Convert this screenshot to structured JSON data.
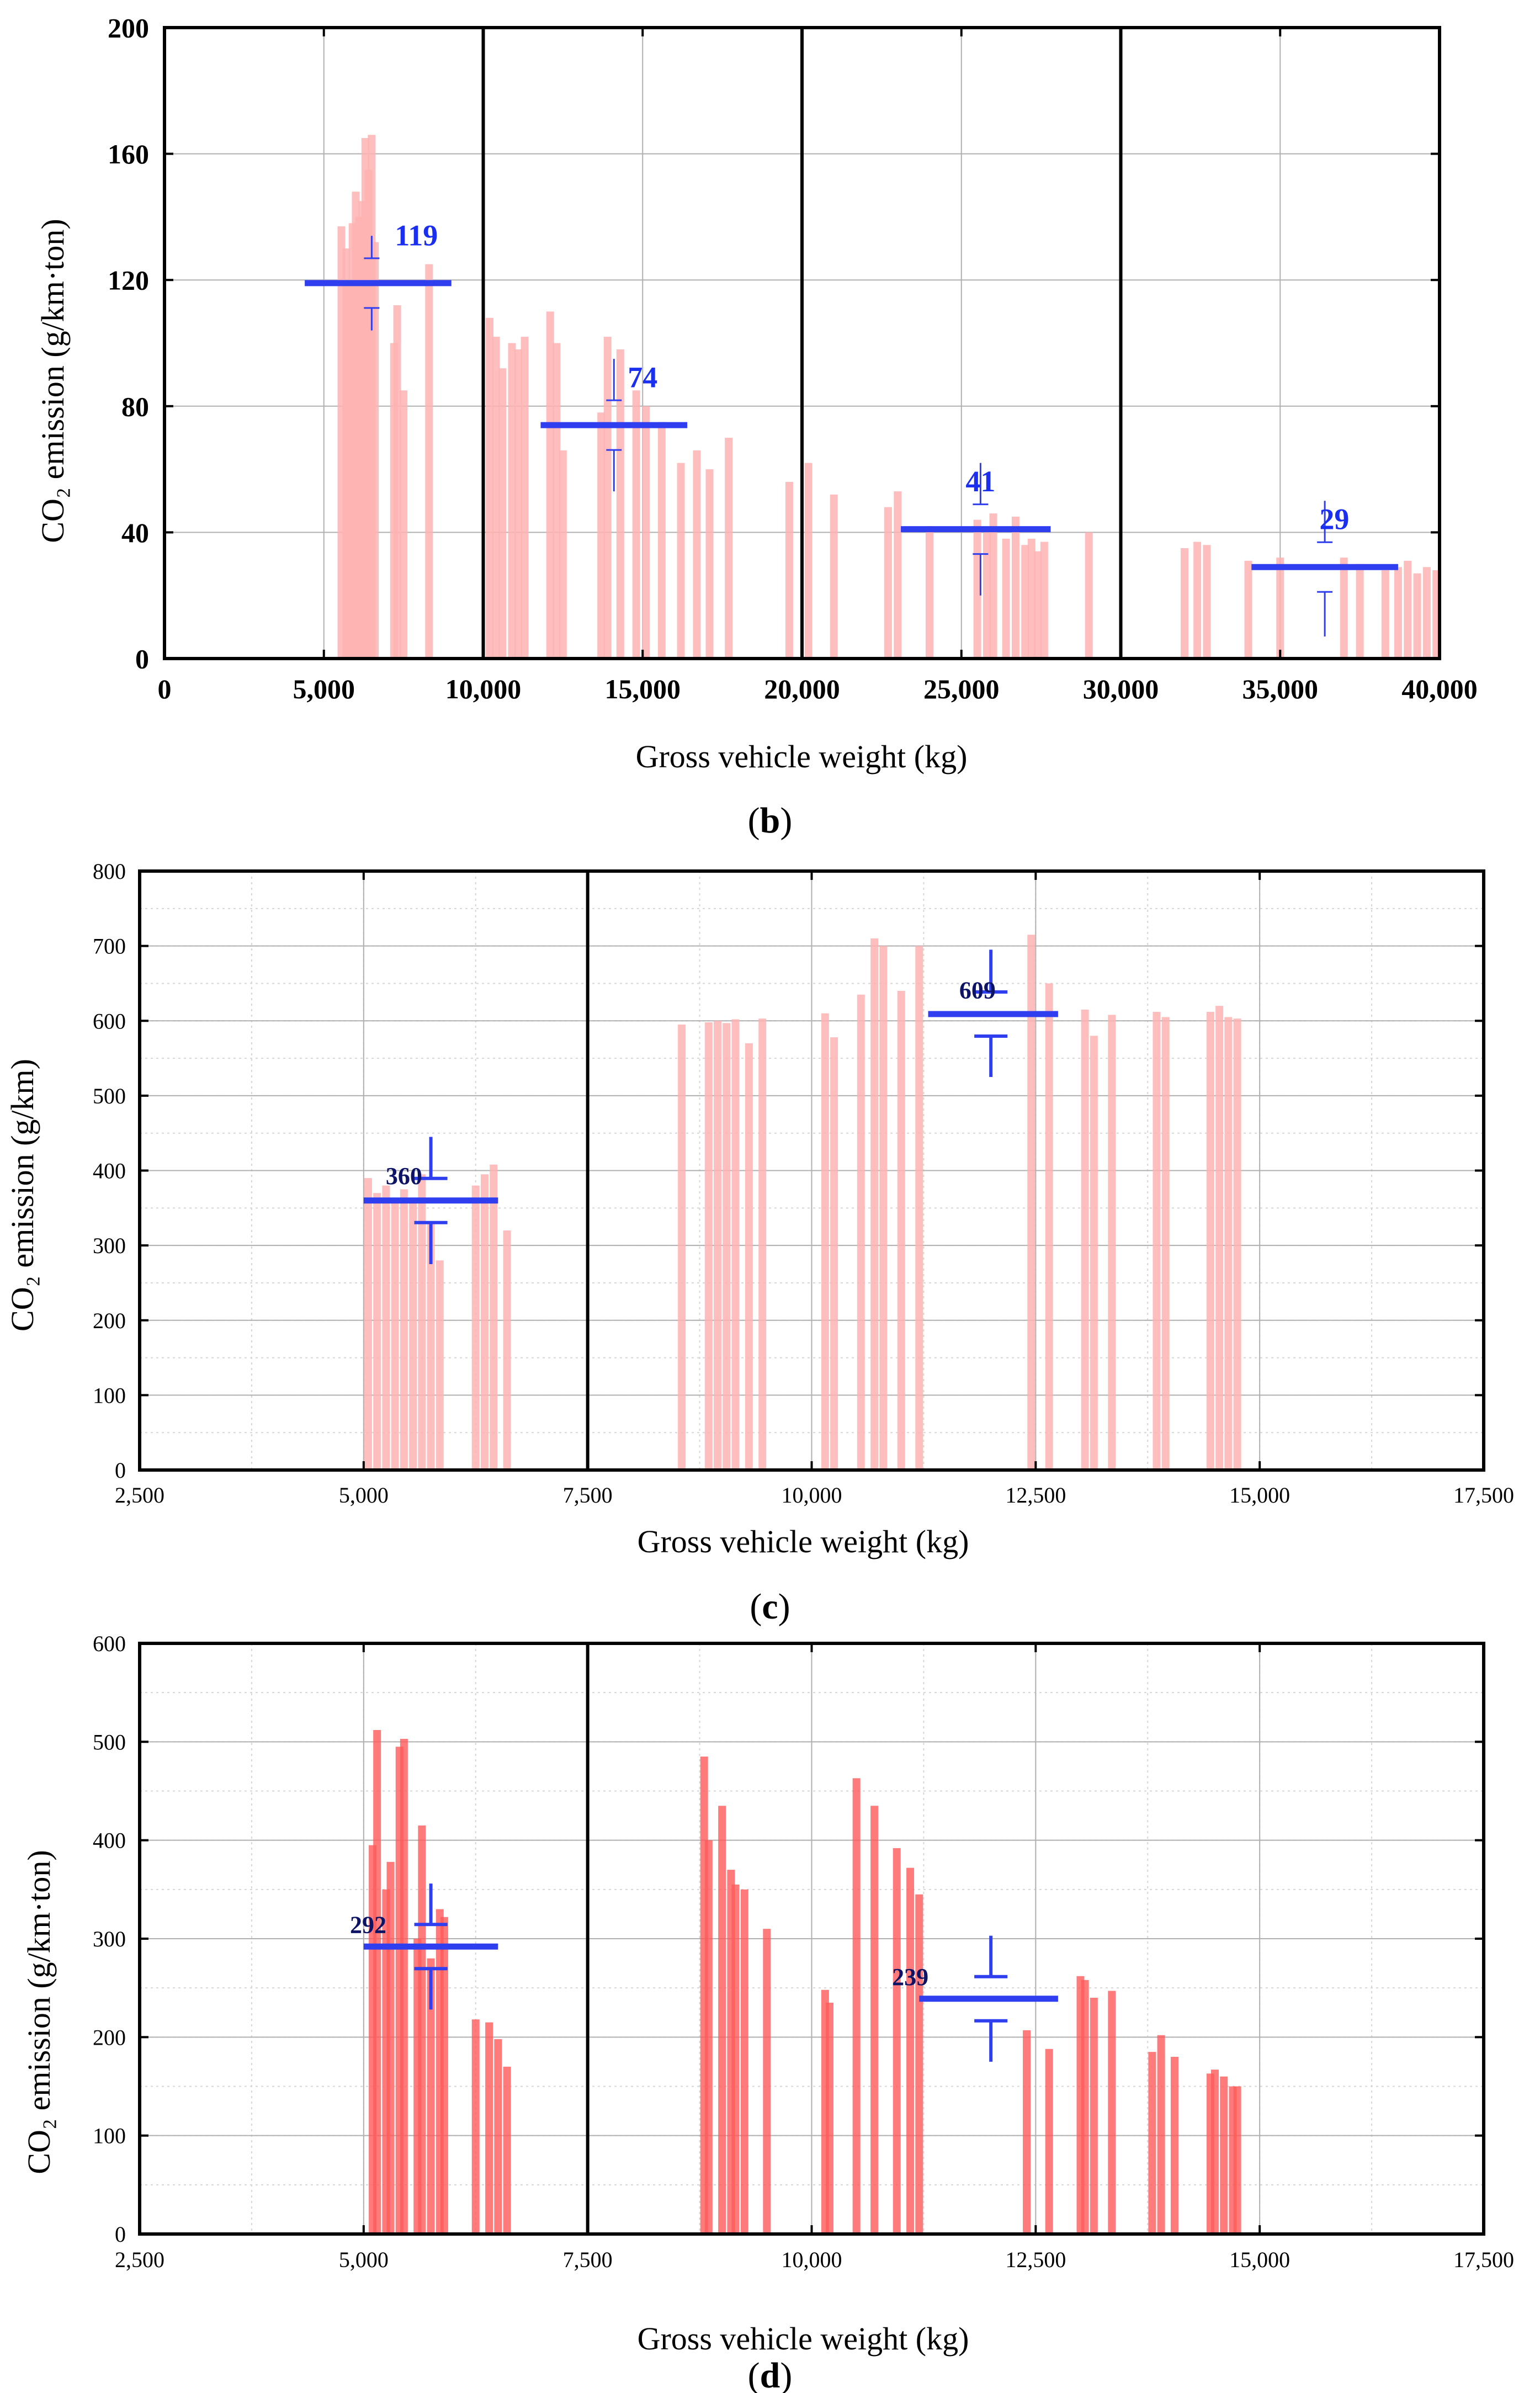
{
  "colors": {
    "bar": "#ff5a5a",
    "bar_light": "#ffb3b3",
    "mean": "#2f3ff0",
    "label_b": "#1a2ff0",
    "label_cd": "#0d1466",
    "grid": "#b0b0b0",
    "grid_dotted": "#d6d6d6",
    "axis": "#000000"
  },
  "chart_data": [
    {
      "id": "b",
      "type": "bar",
      "caption": "b",
      "xlabel": "Gross vehicle weight (kg)",
      "ylabel": "CO₂ emission (g/km·ton)",
      "xlim": [
        0,
        40000
      ],
      "ylim": [
        0,
        200
      ],
      "xticks": [
        0,
        5000,
        10000,
        15000,
        20000,
        25000,
        30000,
        35000,
        40000
      ],
      "xtick_labels": [
        "0",
        "5,000",
        "10,000",
        "15,000",
        "20,000",
        "25,000",
        "30,000",
        "35,000",
        "40,000"
      ],
      "yticks": [
        0,
        40,
        80,
        120,
        160,
        200
      ],
      "ytick_labels": [
        "0",
        "40",
        "80",
        "120",
        "160",
        "200"
      ],
      "dividers": [
        10000,
        20000,
        30000
      ],
      "bar_style": "light",
      "bars": [
        {
          "x": 5550,
          "y": 137
        },
        {
          "x": 5700,
          "y": 130
        },
        {
          "x": 5800,
          "y": 120
        },
        {
          "x": 5900,
          "y": 138
        },
        {
          "x": 6000,
          "y": 148
        },
        {
          "x": 6100,
          "y": 140
        },
        {
          "x": 6200,
          "y": 145
        },
        {
          "x": 6300,
          "y": 165
        },
        {
          "x": 6400,
          "y": 155
        },
        {
          "x": 6500,
          "y": 166
        },
        {
          "x": 6600,
          "y": 132
        },
        {
          "x": 7200,
          "y": 100
        },
        {
          "x": 7300,
          "y": 112
        },
        {
          "x": 7500,
          "y": 85
        },
        {
          "x": 8300,
          "y": 125
        },
        {
          "x": 10200,
          "y": 108
        },
        {
          "x": 10400,
          "y": 102
        },
        {
          "x": 10600,
          "y": 92
        },
        {
          "x": 10900,
          "y": 100
        },
        {
          "x": 11100,
          "y": 98
        },
        {
          "x": 11300,
          "y": 102
        },
        {
          "x": 12100,
          "y": 110
        },
        {
          "x": 12300,
          "y": 100
        },
        {
          "x": 12500,
          "y": 66
        },
        {
          "x": 13700,
          "y": 78
        },
        {
          "x": 13900,
          "y": 102
        },
        {
          "x": 14300,
          "y": 98
        },
        {
          "x": 14800,
          "y": 85
        },
        {
          "x": 15100,
          "y": 80
        },
        {
          "x": 15600,
          "y": 75
        },
        {
          "x": 16200,
          "y": 62
        },
        {
          "x": 16700,
          "y": 66
        },
        {
          "x": 17100,
          "y": 60
        },
        {
          "x": 17700,
          "y": 70
        },
        {
          "x": 19600,
          "y": 56
        },
        {
          "x": 20200,
          "y": 62
        },
        {
          "x": 21000,
          "y": 52
        },
        {
          "x": 22700,
          "y": 48
        },
        {
          "x": 23000,
          "y": 53
        },
        {
          "x": 24000,
          "y": 42
        },
        {
          "x": 25500,
          "y": 44
        },
        {
          "x": 25800,
          "y": 40
        },
        {
          "x": 26000,
          "y": 46
        },
        {
          "x": 26400,
          "y": 38
        },
        {
          "x": 26700,
          "y": 45
        },
        {
          "x": 27000,
          "y": 36
        },
        {
          "x": 27200,
          "y": 38
        },
        {
          "x": 27400,
          "y": 34
        },
        {
          "x": 27600,
          "y": 37
        },
        {
          "x": 29000,
          "y": 40
        },
        {
          "x": 32000,
          "y": 35
        },
        {
          "x": 32400,
          "y": 37
        },
        {
          "x": 32700,
          "y": 36
        },
        {
          "x": 34000,
          "y": 31
        },
        {
          "x": 35000,
          "y": 32
        },
        {
          "x": 37000,
          "y": 32
        },
        {
          "x": 37500,
          "y": 30
        },
        {
          "x": 38300,
          "y": 28
        },
        {
          "x": 38700,
          "y": 29
        },
        {
          "x": 39000,
          "y": 31
        },
        {
          "x": 39300,
          "y": 27
        },
        {
          "x": 39600,
          "y": 29
        },
        {
          "x": 39900,
          "y": 28
        }
      ],
      "means": [
        {
          "label": "119",
          "value": 119,
          "x0": 4400,
          "x1": 9000,
          "xc": 6500,
          "err_low": 104,
          "err_high": 134,
          "lx": 7900,
          "ly": 131
        },
        {
          "label": "74",
          "value": 74,
          "x0": 11800,
          "x1": 16400,
          "xc": 14100,
          "err_low": 53,
          "err_high": 95,
          "lx": 15000,
          "ly": 86
        },
        {
          "label": "41",
          "value": 41,
          "x0": 23100,
          "x1": 27800,
          "xc": 25600,
          "err_low": 20,
          "err_high": 62,
          "lx": 25600,
          "ly": 53
        },
        {
          "label": "29",
          "value": 29,
          "x0": 34100,
          "x1": 38700,
          "xc": 36400,
          "err_low": 7,
          "err_high": 50,
          "lx": 36700,
          "ly": 41
        }
      ],
      "mean_tick_style": "thin"
    },
    {
      "id": "c",
      "type": "bar",
      "caption": "c",
      "xlabel": "Gross vehicle weight (kg)",
      "ylabel": "CO₂ emission (g/km)",
      "xlim": [
        2500,
        17500
      ],
      "ylim": [
        0,
        800
      ],
      "xticks": [
        2500,
        5000,
        7500,
        10000,
        12500,
        15000,
        17500
      ],
      "xtick_labels": [
        "2,500",
        "5,000",
        "7,500",
        "10,000",
        "12,500",
        "15,000",
        "17,500"
      ],
      "yticks": [
        0,
        100,
        200,
        300,
        400,
        500,
        600,
        700,
        800
      ],
      "ytick_labels": [
        "0",
        "100",
        "200",
        "300",
        "400",
        "500",
        "600",
        "700",
        "800"
      ],
      "dividers": [
        7500
      ],
      "bar_style": "light",
      "bars": [
        {
          "x": 5050,
          "y": 390
        },
        {
          "x": 5150,
          "y": 370
        },
        {
          "x": 5250,
          "y": 380
        },
        {
          "x": 5350,
          "y": 360
        },
        {
          "x": 5450,
          "y": 375
        },
        {
          "x": 5550,
          "y": 360
        },
        {
          "x": 5650,
          "y": 395
        },
        {
          "x": 5750,
          "y": 330
        },
        {
          "x": 5850,
          "y": 280
        },
        {
          "x": 6250,
          "y": 380
        },
        {
          "x": 6350,
          "y": 395
        },
        {
          "x": 6450,
          "y": 408
        },
        {
          "x": 6600,
          "y": 320
        },
        {
          "x": 8550,
          "y": 595
        },
        {
          "x": 8850,
          "y": 598
        },
        {
          "x": 8950,
          "y": 600
        },
        {
          "x": 9050,
          "y": 597
        },
        {
          "x": 9150,
          "y": 602
        },
        {
          "x": 9300,
          "y": 570
        },
        {
          "x": 9450,
          "y": 603
        },
        {
          "x": 10150,
          "y": 610
        },
        {
          "x": 10250,
          "y": 578
        },
        {
          "x": 10550,
          "y": 635
        },
        {
          "x": 10700,
          "y": 710
        },
        {
          "x": 10800,
          "y": 700
        },
        {
          "x": 11000,
          "y": 640
        },
        {
          "x": 11200,
          "y": 700
        },
        {
          "x": 12450,
          "y": 715
        },
        {
          "x": 12650,
          "y": 650
        },
        {
          "x": 13050,
          "y": 615
        },
        {
          "x": 13150,
          "y": 580
        },
        {
          "x": 13350,
          "y": 608
        },
        {
          "x": 13850,
          "y": 612
        },
        {
          "x": 13950,
          "y": 605
        },
        {
          "x": 14450,
          "y": 612
        },
        {
          "x": 14550,
          "y": 620
        },
        {
          "x": 14650,
          "y": 605
        },
        {
          "x": 14750,
          "y": 603
        }
      ],
      "means": [
        {
          "label": "360",
          "value": 360,
          "x0": 5000,
          "x1": 6500,
          "xc": 5750,
          "err_low": 275,
          "err_high": 445,
          "lx": 5450,
          "ly": 382
        },
        {
          "label": "609",
          "value": 609,
          "x0": 11300,
          "x1": 12750,
          "xc": 12000,
          "err_low": 525,
          "err_high": 695,
          "lx": 11850,
          "ly": 630
        }
      ],
      "mean_tick_style": "bold"
    },
    {
      "id": "d",
      "type": "bar",
      "caption": "d",
      "xlabel": "Gross vehicle weight (kg)",
      "ylabel": "CO₂ emission (g/km·ton)",
      "xlim": [
        2500,
        17500
      ],
      "ylim": [
        0,
        600
      ],
      "xticks": [
        2500,
        5000,
        7500,
        10000,
        12500,
        15000,
        17500
      ],
      "xtick_labels": [
        "2,500",
        "5,000",
        "7,500",
        "10,000",
        "12,500",
        "15,000",
        "17,500"
      ],
      "yticks": [
        0,
        100,
        200,
        300,
        400,
        500,
        600
      ],
      "ytick_labels": [
        "0",
        "100",
        "200",
        "300",
        "400",
        "500",
        "600"
      ],
      "dividers": [
        7500
      ],
      "bar_style": "solid",
      "bars": [
        {
          "x": 5100,
          "y": 395
        },
        {
          "x": 5150,
          "y": 512
        },
        {
          "x": 5250,
          "y": 350
        },
        {
          "x": 5300,
          "y": 378
        },
        {
          "x": 5400,
          "y": 495
        },
        {
          "x": 5450,
          "y": 503
        },
        {
          "x": 5600,
          "y": 300
        },
        {
          "x": 5650,
          "y": 415
        },
        {
          "x": 5750,
          "y": 280
        },
        {
          "x": 5850,
          "y": 330
        },
        {
          "x": 5900,
          "y": 322
        },
        {
          "x": 6250,
          "y": 218
        },
        {
          "x": 6400,
          "y": 215
        },
        {
          "x": 6500,
          "y": 198
        },
        {
          "x": 6600,
          "y": 170
        },
        {
          "x": 8800,
          "y": 485
        },
        {
          "x": 8850,
          "y": 400
        },
        {
          "x": 9000,
          "y": 435
        },
        {
          "x": 9100,
          "y": 370
        },
        {
          "x": 9150,
          "y": 355
        },
        {
          "x": 9250,
          "y": 350
        },
        {
          "x": 9500,
          "y": 310
        },
        {
          "x": 10150,
          "y": 248
        },
        {
          "x": 10200,
          "y": 235
        },
        {
          "x": 10500,
          "y": 463
        },
        {
          "x": 10700,
          "y": 435
        },
        {
          "x": 10950,
          "y": 392
        },
        {
          "x": 11100,
          "y": 372
        },
        {
          "x": 11200,
          "y": 345
        },
        {
          "x": 12400,
          "y": 207
        },
        {
          "x": 12650,
          "y": 188
        },
        {
          "x": 13000,
          "y": 262
        },
        {
          "x": 13050,
          "y": 258
        },
        {
          "x": 13150,
          "y": 240
        },
        {
          "x": 13350,
          "y": 247
        },
        {
          "x": 13800,
          "y": 185
        },
        {
          "x": 13900,
          "y": 202
        },
        {
          "x": 14050,
          "y": 180
        },
        {
          "x": 14450,
          "y": 163
        },
        {
          "x": 14500,
          "y": 167
        },
        {
          "x": 14600,
          "y": 160
        },
        {
          "x": 14700,
          "y": 150
        },
        {
          "x": 14750,
          "y": 150
        }
      ],
      "means": [
        {
          "label": "292",
          "value": 292,
          "x0": 5000,
          "x1": 6500,
          "xc": 5750,
          "err_low": 228,
          "err_high": 356,
          "lx": 5050,
          "ly": 306
        },
        {
          "label": "239",
          "value": 239,
          "x0": 11200,
          "x1": 12750,
          "xc": 12000,
          "err_low": 175,
          "err_high": 303,
          "lx": 11100,
          "ly": 253
        }
      ],
      "mean_tick_style": "bold"
    }
  ]
}
